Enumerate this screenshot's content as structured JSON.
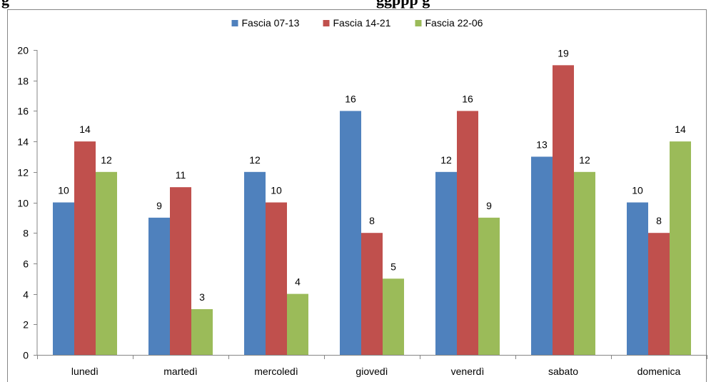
{
  "heading": {
    "left_text": "g",
    "right_text": "ggppp g"
  },
  "chart_data": {
    "type": "bar",
    "title": "",
    "xlabel": "",
    "ylabel": "",
    "categories": [
      "lunedì",
      "martedì",
      "mercoledì",
      "giovedì",
      "venerdì",
      "sabato",
      "domenica"
    ],
    "series": [
      {
        "name": "Fascia 07-13",
        "color": "#4F81BD",
        "values": [
          10,
          9,
          12,
          16,
          12,
          13,
          10
        ]
      },
      {
        "name": "Fascia 14-21",
        "color": "#C0504D",
        "values": [
          14,
          11,
          10,
          8,
          16,
          19,
          8
        ]
      },
      {
        "name": "Fascia 22-06",
        "color": "#9BBB59",
        "values": [
          12,
          3,
          4,
          5,
          9,
          12,
          14
        ]
      }
    ],
    "ylim": [
      0,
      20
    ],
    "yticks": [
      0,
      2,
      4,
      6,
      8,
      10,
      12,
      14,
      16,
      18,
      20
    ],
    "grid": false,
    "legend_position": "top",
    "data_labels": true,
    "axis_color": "#868686"
  }
}
